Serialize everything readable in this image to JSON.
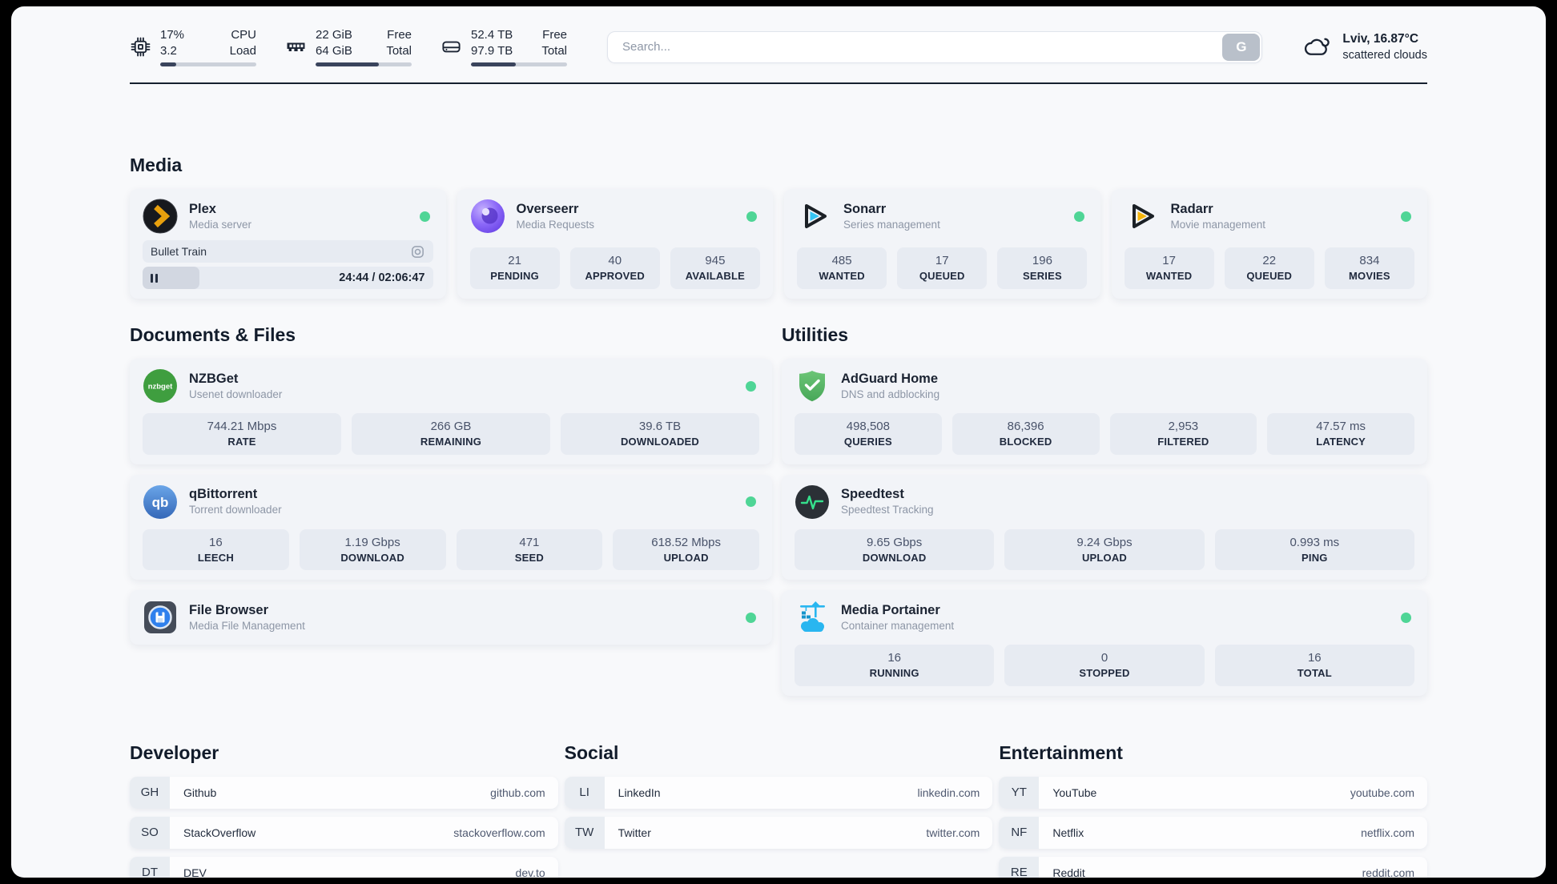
{
  "colors": {
    "status_online": "#4fd596",
    "panel_bg": "#f8f9fb",
    "plex_gold": "#e8a00d",
    "sonarr_blue": "#35c5f4",
    "radarr_gold": "#f6b50c",
    "adguard_green": "#5cb56a",
    "portainer_blue": "#29b6f0"
  },
  "header": {
    "stats": [
      {
        "icon": "cpu-icon",
        "value_top": "17%",
        "value_bottom": "3.2",
        "label_top": "CPU",
        "label_bottom": "Load",
        "progress_pct": 17
      },
      {
        "icon": "ram-icon",
        "value_top": "22 GiB",
        "value_bottom": "64 GiB",
        "label_top": "Free",
        "label_bottom": "Total",
        "progress_pct": 65.6
      },
      {
        "icon": "disk-icon",
        "value_top": "52.4 TB",
        "value_bottom": "97.9 TB",
        "label_top": "Free",
        "label_bottom": "Total",
        "progress_pct": 46.5
      }
    ],
    "search": {
      "placeholder": "Search...",
      "button_label": "G"
    },
    "weather": {
      "location_temp": "Lviv, 16.87°C",
      "condition": "scattered clouds"
    }
  },
  "sections": {
    "media": "Media",
    "documents": "Documents & Files",
    "utilities": "Utilities",
    "developer": "Developer",
    "social": "Social",
    "entertainment": "Entertainment"
  },
  "apps": {
    "plex": {
      "name": "Plex",
      "desc": "Media server",
      "status": "online",
      "now_playing": {
        "title": "Bullet Train",
        "time": "24:44 / 02:06:47",
        "progress_pct": 19.5
      }
    },
    "overseerr": {
      "name": "Overseerr",
      "desc": "Media Requests",
      "status": "online",
      "stats": [
        {
          "value": "21",
          "label": "PENDING"
        },
        {
          "value": "40",
          "label": "APPROVED"
        },
        {
          "value": "945",
          "label": "AVAILABLE"
        }
      ]
    },
    "sonarr": {
      "name": "Sonarr",
      "desc": "Series management",
      "status": "online",
      "stats": [
        {
          "value": "485",
          "label": "WANTED"
        },
        {
          "value": "17",
          "label": "QUEUED"
        },
        {
          "value": "196",
          "label": "SERIES"
        }
      ]
    },
    "radarr": {
      "name": "Radarr",
      "desc": "Movie management",
      "status": "online",
      "stats": [
        {
          "value": "17",
          "label": "WANTED"
        },
        {
          "value": "22",
          "label": "QUEUED"
        },
        {
          "value": "834",
          "label": "MOVIES"
        }
      ]
    },
    "nzbget": {
      "name": "NZBGet",
      "desc": "Usenet downloader",
      "status": "online",
      "icon_text": "nzbget",
      "stats": [
        {
          "value": "744.21 Mbps",
          "label": "RATE"
        },
        {
          "value": "266 GB",
          "label": "REMAINING"
        },
        {
          "value": "39.6 TB",
          "label": "DOWNLOADED"
        }
      ]
    },
    "qbittorrent": {
      "name": "qBittorrent",
      "desc": "Torrent downloader",
      "status": "online",
      "icon_text": "qb",
      "stats": [
        {
          "value": "16",
          "label": "LEECH"
        },
        {
          "value": "1.19 Gbps",
          "label": "DOWNLOAD"
        },
        {
          "value": "471",
          "label": "SEED"
        },
        {
          "value": "618.52 Mbps",
          "label": "UPLOAD"
        }
      ]
    },
    "filebrowser": {
      "name": "File Browser",
      "desc": "Media File Management",
      "status": "online"
    },
    "adguard": {
      "name": "AdGuard Home",
      "desc": "DNS and adblocking",
      "stats": [
        {
          "value": "498,508",
          "label": "QUERIES"
        },
        {
          "value": "86,396",
          "label": "BLOCKED"
        },
        {
          "value": "2,953",
          "label": "FILTERED"
        },
        {
          "value": "47.57 ms",
          "label": "LATENCY"
        }
      ]
    },
    "speedtest": {
      "name": "Speedtest",
      "desc": "Speedtest Tracking",
      "stats": [
        {
          "value": "9.65 Gbps",
          "label": "DOWNLOAD"
        },
        {
          "value": "9.24 Gbps",
          "label": "UPLOAD"
        },
        {
          "value": "0.993 ms",
          "label": "PING"
        }
      ]
    },
    "portainer": {
      "name": "Media Portainer",
      "desc": "Container management",
      "status": "online",
      "stats": [
        {
          "value": "16",
          "label": "RUNNING"
        },
        {
          "value": "0",
          "label": "STOPPED"
        },
        {
          "value": "16",
          "label": "TOTAL"
        }
      ]
    }
  },
  "bookmarks": {
    "developer": [
      {
        "abbr": "GH",
        "name": "Github",
        "url": "github.com"
      },
      {
        "abbr": "SO",
        "name": "StackOverflow",
        "url": "stackoverflow.com"
      },
      {
        "abbr": "DT",
        "name": "DEV",
        "url": "dev.to"
      }
    ],
    "social": [
      {
        "abbr": "LI",
        "name": "LinkedIn",
        "url": "linkedin.com"
      },
      {
        "abbr": "TW",
        "name": "Twitter",
        "url": "twitter.com"
      }
    ],
    "entertainment": [
      {
        "abbr": "YT",
        "name": "YouTube",
        "url": "youtube.com"
      },
      {
        "abbr": "NF",
        "name": "Netflix",
        "url": "netflix.com"
      },
      {
        "abbr": "RE",
        "name": "Reddit",
        "url": "reddit.com"
      }
    ]
  }
}
